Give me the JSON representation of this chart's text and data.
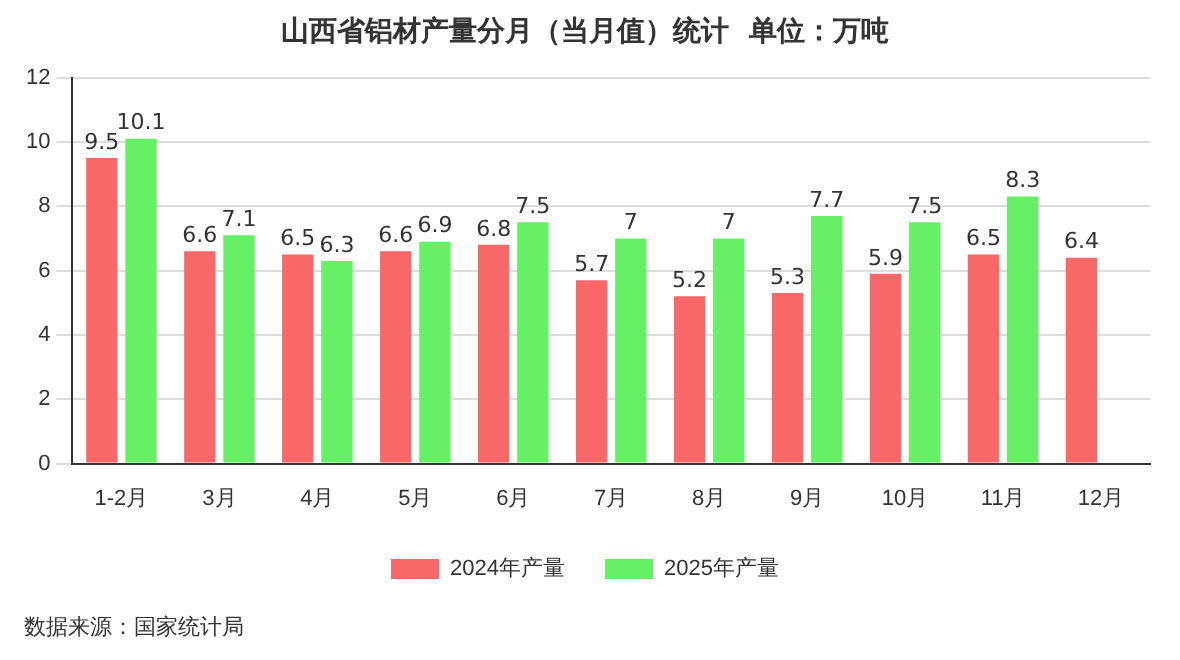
{
  "chart_data": {
    "type": "bar",
    "title": "山西省铝材产量分月（当月值）统计  单位：万吨",
    "categories": [
      "1-2月",
      "3月",
      "4月",
      "5月",
      "6月",
      "7月",
      "8月",
      "9月",
      "10月",
      "11月",
      "12月"
    ],
    "series": [
      {
        "name": "2024年产量",
        "color": "#f86868",
        "values": [
          9.5,
          6.6,
          6.5,
          6.6,
          6.8,
          5.7,
          5.2,
          5.3,
          5.9,
          6.5,
          6.4
        ]
      },
      {
        "name": "2025年产量",
        "color": "#66f066",
        "values": [
          10.1,
          7.1,
          6.3,
          6.9,
          7.5,
          7,
          7,
          7.7,
          7.5,
          8.3,
          null
        ]
      }
    ],
    "ylim": [
      0,
      12
    ],
    "yticks": [
      0,
      2,
      4,
      6,
      8,
      10,
      12
    ],
    "grid": "y",
    "legend": "bottom",
    "data_labels": true,
    "annotations": [
      "数据来源：国家统计局"
    ]
  }
}
